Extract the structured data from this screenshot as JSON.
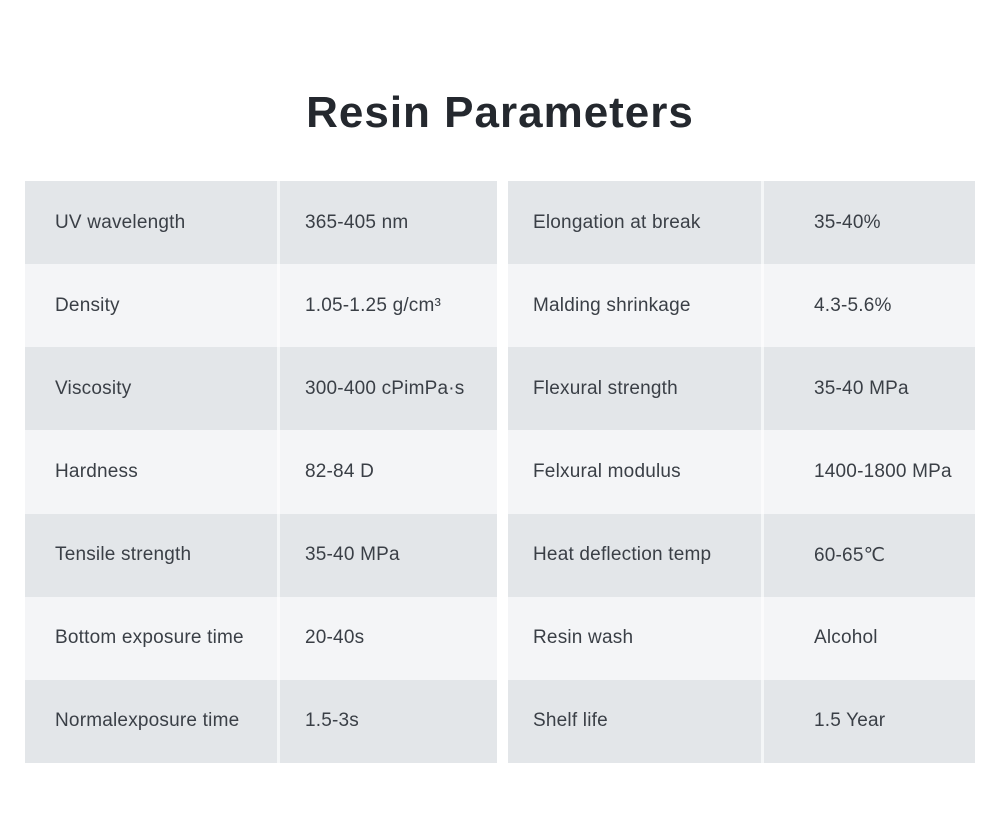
{
  "page": {
    "title": "Resin Parameters"
  },
  "colors": {
    "page-bg": "#ffffff",
    "title-color": "#24282e",
    "row-odd": "#e3e6e9",
    "row-even": "#f4f5f7",
    "cell-text": "#3a3f46",
    "divider": "#f0f2f4"
  },
  "table": {
    "left": [
      {
        "label": "UV wavelength",
        "value": "365-405 nm"
      },
      {
        "label": "Density",
        "value": "1.05-1.25 g/cm³"
      },
      {
        "label": "Viscosity",
        "value": "300-400 cPimPa·s"
      },
      {
        "label": "Hardness",
        "value": "82-84 D"
      },
      {
        "label": "Tensile strength",
        "value": "35-40 MPa"
      },
      {
        "label": "Bottom exposure time",
        "value": "20-40s"
      },
      {
        "label": "Normalexposure time",
        "value": "1.5-3s"
      }
    ],
    "right": [
      {
        "label": "Elongation at break",
        "value": "35-40%"
      },
      {
        "label": "Malding shrinkage",
        "value": "4.3-5.6%"
      },
      {
        "label": "Flexural strength",
        "value": "35-40 MPa"
      },
      {
        "label": "Felxural modulus",
        "value": "1400-1800 MPa"
      },
      {
        "label": "Heat deflection temp",
        "value": "60-65℃"
      },
      {
        "label": "Resin wash",
        "value": "Alcohol"
      },
      {
        "label": "Shelf life",
        "value": "1.5 Year"
      }
    ]
  }
}
